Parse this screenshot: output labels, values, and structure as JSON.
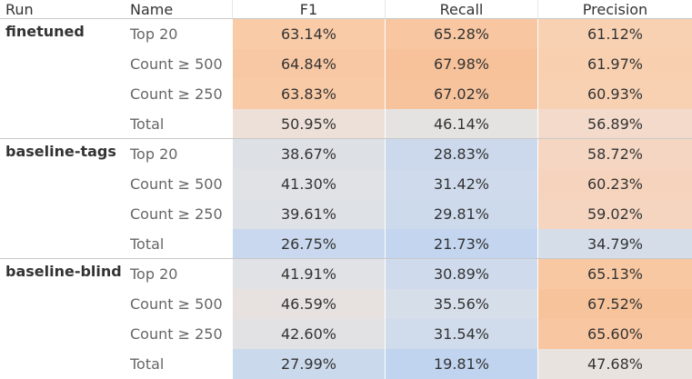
{
  "header": {
    "run_label": "Run",
    "name_label": "Name",
    "columns": [
      "F1",
      "Recall",
      "Precision"
    ]
  },
  "groups": [
    {
      "run": "finetuned",
      "rows": [
        {
          "name": "Top 20",
          "values": [
            "63.14%",
            "65.28%",
            "61.12%"
          ],
          "colors": [
            "#f9cba7",
            "#f8c7a1",
            "#f8d1b2"
          ]
        },
        {
          "name": "Count ≥ 500",
          "values": [
            "64.84%",
            "67.98%",
            "61.97%"
          ],
          "colors": [
            "#f8c8a4",
            "#f7c29a",
            "#f8cfaf"
          ]
        },
        {
          "name": "Count ≥ 250",
          "values": [
            "63.83%",
            "67.02%",
            "60.93%"
          ],
          "colors": [
            "#f9caa6",
            "#f7c39c",
            "#f8d1b3"
          ]
        },
        {
          "name": "Total",
          "values": [
            "50.95%",
            "46.14%",
            "56.89%"
          ],
          "colors": [
            "#ede0d8",
            "#e5e3e2",
            "#f3dacb"
          ]
        }
      ]
    },
    {
      "run": "baseline-tags",
      "rows": [
        {
          "name": "Top 20",
          "values": [
            "38.67%",
            "28.83%",
            "58.72%"
          ],
          "colors": [
            "#dde1e6",
            "#ccd9ec",
            "#f5d6c2"
          ]
        },
        {
          "name": "Count ≥ 500",
          "values": [
            "41.30%",
            "31.42%",
            "60.23%"
          ],
          "colors": [
            "#e0e2e5",
            "#cfdbec",
            "#f6d3bc"
          ]
        },
        {
          "name": "Count ≥ 250",
          "values": [
            "39.61%",
            "29.81%",
            "59.02%"
          ],
          "colors": [
            "#dee1e6",
            "#cddaec",
            "#f5d5c0"
          ]
        },
        {
          "name": "Total",
          "values": [
            "26.75%",
            "21.73%",
            "34.79%"
          ],
          "colors": [
            "#c9d8ee",
            "#c3d5ef",
            "#d5dde9"
          ]
        }
      ]
    },
    {
      "run": "baseline-blind",
      "rows": [
        {
          "name": "Top 20",
          "values": [
            "41.91%",
            "30.89%",
            "65.13%"
          ],
          "colors": [
            "#e1e2e5",
            "#cfdbec",
            "#f8c8a2"
          ]
        },
        {
          "name": "Count ≥ 500",
          "values": [
            "46.59%",
            "35.56%",
            "67.52%"
          ],
          "colors": [
            "#e7e2df",
            "#d6deea",
            "#f7c39b"
          ]
        },
        {
          "name": "Count ≥ 250",
          "values": [
            "42.60%",
            "31.54%",
            "65.60%"
          ],
          "colors": [
            "#e2e2e4",
            "#d0dbeb",
            "#f8c6a0"
          ]
        },
        {
          "name": "Total",
          "values": [
            "27.99%",
            "19.81%",
            "47.68%"
          ],
          "colors": [
            "#cbd9ed",
            "#c0d3ef",
            "#e8e3df"
          ]
        }
      ]
    }
  ]
}
